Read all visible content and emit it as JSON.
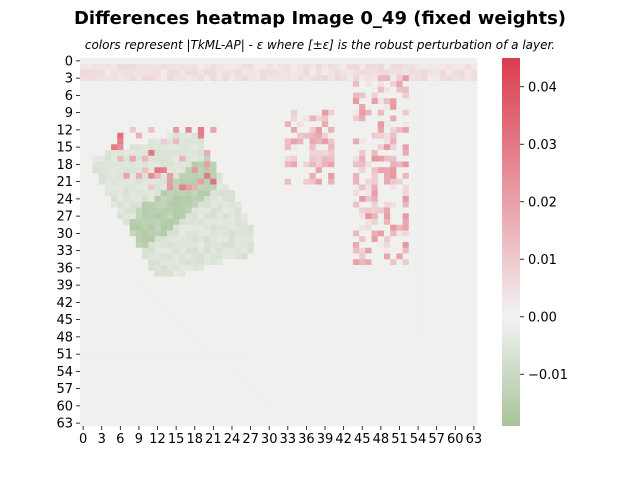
{
  "chart_data": {
    "type": "heatmap",
    "title": "Differences heatmap Image 0_49 (fixed weights)",
    "subtitle": "colors represent |TkML-AP| - ε where [±ε] is the robust perturbation of a layer.",
    "rows": 64,
    "cols": 64,
    "x_ticks": [
      "0",
      "3",
      "6",
      "9",
      "12",
      "15",
      "18",
      "21",
      "24",
      "27",
      "30",
      "33",
      "36",
      "39",
      "42",
      "45",
      "48",
      "51",
      "54",
      "57",
      "60",
      "63"
    ],
    "y_ticks": [
      "0",
      "3",
      "6",
      "9",
      "12",
      "15",
      "18",
      "21",
      "24",
      "27",
      "30",
      "33",
      "36",
      "39",
      "42",
      "45",
      "48",
      "51",
      "54",
      "57",
      "60",
      "63"
    ],
    "colorbar": {
      "vmin": -0.019,
      "vmax": 0.045,
      "ticks": [
        0.04,
        0.03,
        0.02,
        0.01,
        0.0,
        -0.01
      ],
      "tick_labels": [
        "0.04",
        "0.03",
        "0.02",
        "0.01",
        "0.00",
        "−0.01"
      ],
      "low_color": "#a8c49a",
      "mid_color": "#f2f2f2",
      "high_color": "#dc3c4e"
    },
    "regions": [
      {
        "name": "negative-leaf-blob-outer",
        "rows": [
          14,
          37
        ],
        "cols": [
          2,
          28
        ],
        "approx_value": -0.006
      },
      {
        "name": "negative-leaf-core",
        "rows": [
          15,
          33
        ],
        "cols": [
          5,
          21
        ],
        "approx_value": -0.015
      },
      {
        "name": "positive-top-band",
        "rows": [
          1,
          3
        ],
        "cols": [
          0,
          63
        ],
        "approx_value": 0.005
      },
      {
        "name": "positive-left-red-cluster",
        "rows": [
          12,
          22
        ],
        "cols": [
          5,
          21
        ],
        "approx_value": 0.03
      },
      {
        "name": "positive-middle-cluster",
        "rows": [
          9,
          21
        ],
        "cols": [
          33,
          40
        ],
        "approx_value": 0.012
      },
      {
        "name": "positive-right-cluster",
        "rows": [
          3,
          35
        ],
        "cols": [
          44,
          52
        ],
        "approx_value": 0.015
      },
      {
        "name": "faint-negative-contour",
        "rows": [
          3,
          63
        ],
        "cols": [
          0,
          57
        ],
        "approx_value": -0.001
      }
    ]
  }
}
